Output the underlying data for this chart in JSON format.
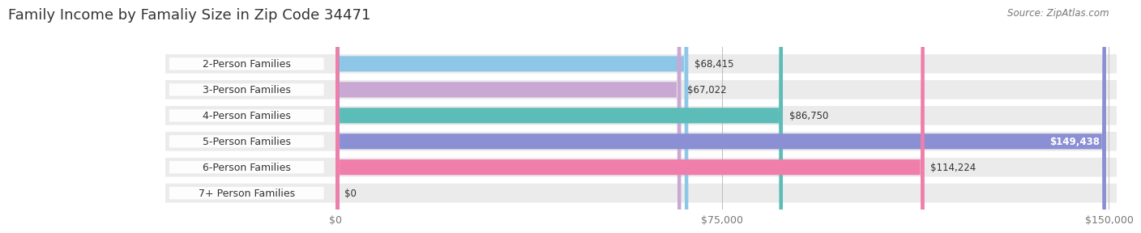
{
  "title": "Family Income by Famaliy Size in Zip Code 34471",
  "source": "Source: ZipAtlas.com",
  "categories": [
    "2-Person Families",
    "3-Person Families",
    "4-Person Families",
    "5-Person Families",
    "6-Person Families",
    "7+ Person Families"
  ],
  "values": [
    68415,
    67022,
    86750,
    149438,
    114224,
    0
  ],
  "labels": [
    "$68,415",
    "$67,022",
    "$86,750",
    "$149,438",
    "$114,224",
    "$0"
  ],
  "bar_colors": [
    "#8ec6e8",
    "#c9a8d4",
    "#5bbcb8",
    "#8b8fd4",
    "#f07eaa",
    "#f5c89a"
  ],
  "background_color": "#ffffff",
  "row_bg_color": "#ebebeb",
  "xlim_max": 150000,
  "xticks": [
    0,
    75000,
    150000
  ],
  "xticklabels": [
    "$0",
    "$75,000",
    "$150,000"
  ],
  "title_fontsize": 13,
  "source_fontsize": 8.5,
  "label_fontsize": 8.5,
  "category_fontsize": 9,
  "bar_height": 0.6,
  "title_color": "#333333",
  "source_color": "#777777",
  "label_color_dark": "#333333",
  "label_color_light": "#ffffff"
}
